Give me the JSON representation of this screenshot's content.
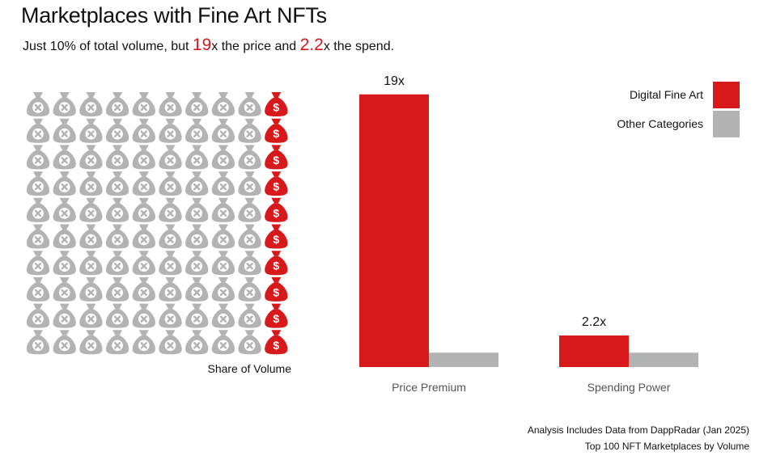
{
  "title": "Marketplaces with Fine Art NFTs",
  "subtitle": {
    "part1": "Just 10%  of total volume, but ",
    "highlight1": "19",
    "part2": "x  the price and ",
    "highlight2": "2.2",
    "part3": "x the spend."
  },
  "colors": {
    "fine_art": "#d7191c",
    "other": "#b3b3b3"
  },
  "icons": {
    "fine_art": "money-bag-dollar-icon",
    "other": "money-bag-x-icon"
  },
  "chart_data": [
    {
      "type": "waffle",
      "grid": {
        "rows": 10,
        "cols": 10
      },
      "series": [
        {
          "name": "Digital Fine Art",
          "percent": 10
        },
        {
          "name": "Other Categories",
          "percent": 90
        }
      ],
      "xlabel": "Share of Volume"
    },
    {
      "type": "bar",
      "categories": [
        "Price Premium",
        "Spending Power"
      ],
      "series": [
        {
          "name": "Digital Fine Art",
          "values": [
            19,
            2.2
          ],
          "labels": [
            "19x",
            "2.2x"
          ]
        },
        {
          "name": "Other Categories",
          "values": [
            1,
            1
          ]
        }
      ],
      "ylim": [
        0,
        20
      ],
      "legend": "top-right"
    }
  ],
  "footer": {
    "line1": "Analysis Includes Data from DappRadar (Jan 2025)",
    "line2": "Top 100 NFT Marketplaces by Volume"
  }
}
